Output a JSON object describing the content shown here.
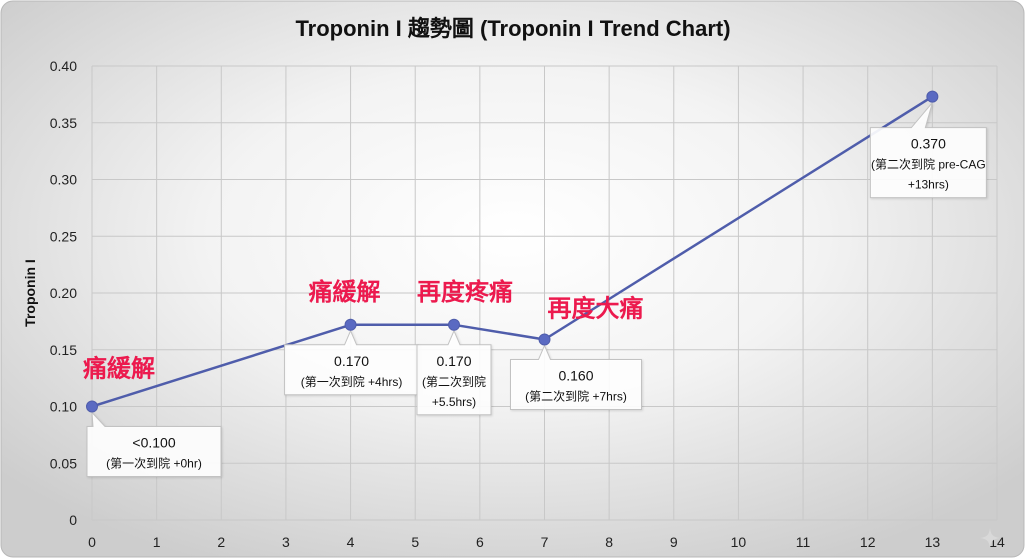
{
  "chart_data": {
    "type": "line",
    "title": "Troponin I 趨勢圖 (Troponin I Trend Chart)",
    "ylabel": "Troponin I",
    "xlim": [
      0,
      14
    ],
    "ylim": [
      0,
      0.4
    ],
    "x_ticks": [
      "0",
      "1",
      "2",
      "3",
      "4",
      "5",
      "6",
      "7",
      "8",
      "9",
      "10",
      "11",
      "12",
      "13",
      "14"
    ],
    "y_ticks": [
      "0",
      "0.05",
      "0.10",
      "0.15",
      "0.20",
      "0.25",
      "0.30",
      "0.35",
      "0.40"
    ],
    "grid": true,
    "legend": "none",
    "annotation_color": "#ec1a4e",
    "series": [
      {
        "color": "#4f5dab",
        "marker_color": "#5a6ac2",
        "points": [
          {
            "x": 0,
            "y": 0.1,
            "label_lines": [
              "<0.100",
              "(第一次到院 +0hr)"
            ],
            "annotation": "痛緩解"
          },
          {
            "x": 4,
            "y": 0.172,
            "label_lines": [
              "0.170",
              "(第一次到院 +4hrs)"
            ],
            "annotation": "痛緩解"
          },
          {
            "x": 5.6,
            "y": 0.172,
            "label_lines": [
              "0.170",
              "(第二次到院",
              "+5.5hrs)"
            ],
            "annotation": "再度疼痛"
          },
          {
            "x": 7,
            "y": 0.159,
            "label_lines": [
              "0.160",
              "(第二次到院 +7hrs)"
            ],
            "annotation": "再度大痛"
          },
          {
            "x": 13,
            "y": 0.373,
            "label_lines": [
              "0.370",
              "(第二次到院 pre-CAG",
              "+13hrs)"
            ]
          }
        ]
      }
    ]
  },
  "watermark_icon": "sparkle-icon"
}
